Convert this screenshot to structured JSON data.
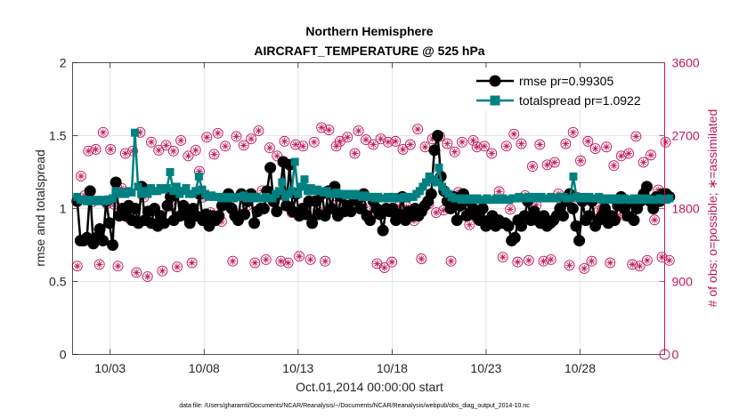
{
  "chart_data": {
    "type": "line",
    "title_line1": "Northern Hemisphere",
    "title_line2": "AIRCRAFT_TEMPERATURE @ 525 hPa",
    "xlabel": "Oct.01,2014 00:00:00 start",
    "ylabel": "rmse and totalspread",
    "ylabel_right": "# of obs: o=possible; ∗=assimilated",
    "footnote": "data file: /Users/gharamti/Documents/NCAR/Reanalysis/~/Documents/NCAR/Reanalysis/webpub/obs_diag_output_2014-10.nc",
    "xlim": [
      1,
      32.5
    ],
    "ylim": [
      0,
      2
    ],
    "ylim_right": [
      0,
      3600
    ],
    "x_ticks": [
      3,
      8,
      13,
      18,
      23,
      28
    ],
    "x_tick_labels": [
      "10/03",
      "10/08",
      "10/13",
      "10/18",
      "10/23",
      "10/28"
    ],
    "y_ticks": [
      0,
      0.5,
      1,
      1.5,
      2
    ],
    "y_tick_labels": [
      "0",
      "0.5",
      "1",
      "1.5",
      "2"
    ],
    "y_right_ticks": [
      0,
      900,
      1800,
      2700,
      3600
    ],
    "y_right_tick_labels": [
      "0",
      "900",
      "1800",
      "2700",
      "3600"
    ],
    "legend_position": "top-right",
    "colors": {
      "rmse": "#000000",
      "totalspread": "#008080",
      "obs": "#c2185b"
    },
    "series": [
      {
        "name": "rmse pr=0.99305",
        "values": [
          1.05,
          0.78,
          0.78,
          0.8,
          1.12,
          0.76,
          0.8,
          0.86,
          0.78,
          1.05,
          0.9,
          0.75,
          1.18,
          0.95,
          1.0,
          0.95,
          1.02,
          0.92,
          1.0,
          0.9,
          1.15,
          0.92,
          0.98,
          0.9,
          1.0,
          0.88,
          0.95,
          0.9,
          1.02,
          1.08,
          0.92,
          1.12,
          0.95,
          1.02,
          0.95,
          0.9,
          1.0,
          0.95,
          1.1,
          0.92,
          0.96,
          0.88,
          0.95,
          0.92,
          0.95,
          1.02,
          1.05,
          1.1,
          1.0,
          0.95,
          0.92,
          1.1,
          0.96,
          1.05,
          1.1,
          0.9,
          0.98,
          1.0,
          1.0,
          1.12,
          1.28,
          1.05,
          0.98,
          1.1,
          1.32,
          1.02,
          1.3,
          0.98,
          1.1,
          0.95,
          1.0,
          0.96,
          1.05,
          0.9,
          1.05,
          0.96,
          1.1,
          0.95,
          1.12,
          1.0,
          1.15,
          0.95,
          1.08,
          0.98,
          1.02,
          0.98,
          1.08,
          1.05,
          1.0,
          1.1,
          0.95,
          0.92,
          1.05,
          1.0,
          0.96,
          0.85,
          1.0,
          0.98,
          1.0,
          0.92,
          0.96,
          1.08,
          0.92,
          0.98,
          0.95,
          1.0,
          0.95,
          0.98,
          1.02,
          1.05,
          1.1,
          1.4,
          1.5,
          1.22,
          1.12,
          1.05,
          1.0,
          1.08,
          0.92,
          1.02,
          1.1,
          0.95,
          1.05,
          1.0,
          0.95,
          0.92,
          1.0,
          0.88,
          0.92,
          0.95,
          0.88,
          0.92,
          0.9,
          0.9,
          0.88,
          0.78,
          0.8,
          0.92,
          0.88,
          0.95,
          1.05,
          0.92,
          0.98,
          0.92,
          0.9,
          0.95,
          0.88,
          0.9,
          0.92,
          0.95,
          1.0,
          0.95,
          1.05,
          1.1,
          1.0,
          0.88,
          0.78,
          1.05,
          0.92,
          0.95,
          1.05,
          0.88,
          0.92,
          0.95,
          1.0,
          0.9,
          0.95,
          0.92,
          1.02,
          1.08,
          1.0,
          0.95,
          1.05,
          0.92,
          1.0,
          1.05,
          1.1,
          1.15,
          1.05,
          1.0,
          1.08,
          1.05,
          1.1,
          1.1,
          1.08
        ]
      },
      {
        "name": "totalspread pr=1.0922",
        "values": [
          1.08,
          1.06,
          1.06,
          1.05,
          1.06,
          1.05,
          1.06,
          1.05,
          1.06,
          1.05,
          1.06,
          1.07,
          1.12,
          1.1,
          1.11,
          1.1,
          1.12,
          1.11,
          1.52,
          1.15,
          1.1,
          1.12,
          1.1,
          1.14,
          1.12,
          1.12,
          1.14,
          1.13,
          1.14,
          1.25,
          1.12,
          1.15,
          1.1,
          1.12,
          1.14,
          1.1,
          1.1,
          1.12,
          1.22,
          1.13,
          1.1,
          1.08,
          1.09,
          1.08,
          1.08,
          1.07,
          1.08,
          1.07,
          1.08,
          1.07,
          1.08,
          1.08,
          1.09,
          1.07,
          1.08,
          1.07,
          1.08,
          1.07,
          1.07,
          1.08,
          1.07,
          1.07,
          1.1,
          1.12,
          1.18,
          1.08,
          1.1,
          1.12,
          1.32,
          1.1,
          1.15,
          1.2,
          1.12,
          1.14,
          1.12,
          1.13,
          1.12,
          1.11,
          1.12,
          1.1,
          1.1,
          1.11,
          1.1,
          1.1,
          1.09,
          1.1,
          1.09,
          1.1,
          1.09,
          1.08,
          1.09,
          1.08,
          1.08,
          1.07,
          1.08,
          1.07,
          1.07,
          1.08,
          1.07,
          1.08,
          1.07,
          1.07,
          1.08,
          1.07,
          1.08,
          1.08,
          1.1,
          1.12,
          1.15,
          1.18,
          1.22,
          1.2,
          1.18,
          1.28,
          1.15,
          1.12,
          1.1,
          1.08,
          1.07,
          1.07,
          1.06,
          1.07,
          1.06,
          1.07,
          1.06,
          1.07,
          1.06,
          1.06,
          1.07,
          1.06,
          1.06,
          1.07,
          1.06,
          1.07,
          1.06,
          1.06,
          1.07,
          1.07,
          1.08,
          1.07,
          1.07,
          1.08,
          1.07,
          1.08,
          1.07,
          1.08,
          1.07,
          1.07,
          1.08,
          1.07,
          1.07,
          1.08,
          1.08,
          1.07,
          1.07,
          1.22,
          1.08,
          1.07,
          1.08,
          1.07,
          1.08,
          1.07,
          1.07,
          1.08,
          1.06,
          1.07,
          1.06,
          1.07,
          1.06,
          1.07,
          1.06,
          1.07,
          1.06,
          1.06,
          1.07,
          1.06,
          1.07,
          1.06,
          1.07,
          1.06,
          1.06,
          1.06,
          1.07,
          1.06,
          1.06,
          1.07
        ]
      }
    ],
    "obs_possible": [
      1090,
      2200,
      1960,
      2510,
      1880,
      2530,
      1110,
      2740,
      1860,
      2530,
      1850,
      1090,
      2050,
      2480,
      1680,
      2510,
      1010,
      2740,
      1940,
      960,
      2620,
      1770,
      2520,
      1030,
      2580,
      1830,
      2510,
      1080,
      2640,
      1820,
      2450,
      1130,
      2520,
      2260,
      1940,
      2680,
      1750,
      2470,
      2730,
      1640,
      2570,
      1870,
      1150,
      2690,
      1730,
      2580,
      1840,
      2660,
      1130,
      2760,
      2020,
      1170,
      2550,
      1880,
      2450,
      1150,
      2630,
      1130,
      1750,
      2590,
      1210,
      2570,
      1830,
      1170,
      2620,
      1770,
      2800,
      1150,
      2770,
      1840,
      2570,
      2630,
      1840,
      2680,
      1760,
      2480,
      2760,
      1830,
      2650,
      1760,
      2590,
      1120,
      2660,
      1070,
      2620,
      1140,
      2630,
      1830,
      2530,
      1820,
      2590,
      1650,
      2780,
      1180,
      2560,
      1860,
      2660,
      1750,
      2690,
      1780,
      2600,
      1150,
      2500,
      2000,
      2620,
      1790,
      1600,
      2640,
      2560,
      1670,
      2570,
      1640,
      2480,
      1670,
      2010,
      1200,
      2570,
      1790,
      2720,
      1140,
      2600,
      1960,
      1160,
      2320,
      1840,
      2590,
      1150,
      2340,
      1170,
      2370,
      1980,
      1880,
      2600,
      1100,
      2740,
      1940,
      2390,
      1060,
      2630,
      1150,
      2540,
      1770,
      1800,
      2560,
      1130,
      2330,
      1720,
      2450,
      1710,
      2480,
      1110,
      2690,
      1090,
      2370,
      1160,
      2460,
      1660,
      2030,
      1200,
      2620,
      1160
    ]
  }
}
